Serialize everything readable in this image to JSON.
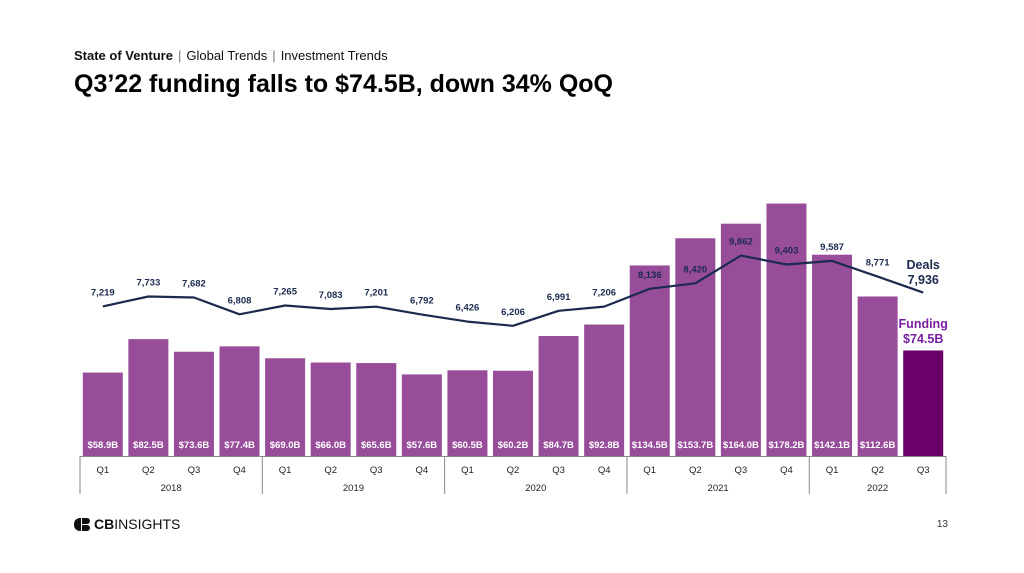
{
  "breadcrumb": {
    "section": "State of Venture",
    "item2": "Global Trends",
    "item3": "Investment Trends",
    "separator": "|"
  },
  "title": "Q3’22 funding falls to $74.5B, down 34% QoQ",
  "logo": {
    "bold": "CB",
    "rest": "INSIGHTS",
    "icon": "cb-insights-logo-icon"
  },
  "page_number": "13",
  "colors": {
    "bar": "#984d9b",
    "bar_highlight": "#6b0068",
    "line": "#1b2a4e",
    "funding_label": "#7b1fa2"
  },
  "chart_data": {
    "type": "bar",
    "title": "",
    "xlabel": "",
    "ylabel": "",
    "categories": [
      "Q1",
      "Q2",
      "Q3",
      "Q4",
      "Q1",
      "Q2",
      "Q3",
      "Q4",
      "Q1",
      "Q2",
      "Q3",
      "Q4",
      "Q1",
      "Q2",
      "Q3",
      "Q4",
      "Q1",
      "Q2",
      "Q3"
    ],
    "years": [
      {
        "label": "2018",
        "count": 4
      },
      {
        "label": "2019",
        "count": 4
      },
      {
        "label": "2020",
        "count": 4
      },
      {
        "label": "2021",
        "count": 4
      },
      {
        "label": "2022",
        "count": 3
      }
    ],
    "series": [
      {
        "name": "Funding",
        "type": "bar",
        "values": [
          58.9,
          82.5,
          73.6,
          77.4,
          69.0,
          66.0,
          65.6,
          57.6,
          60.5,
          60.2,
          84.7,
          92.8,
          134.5,
          153.7,
          164.0,
          178.2,
          142.1,
          112.6,
          74.5
        ],
        "labels": [
          "$58.9B",
          "$82.5B",
          "$73.6B",
          "$77.4B",
          "$69.0B",
          "$66.0B",
          "$65.6B",
          "$57.6B",
          "$60.5B",
          "$60.2B",
          "$84.7B",
          "$92.8B",
          "$134.5B",
          "$153.7B",
          "$164.0B",
          "$178.2B",
          "$142.1B",
          "$112.6B",
          ""
        ],
        "callout": "$74.5B"
      },
      {
        "name": "Deals",
        "type": "line",
        "values": [
          7219,
          7733,
          7682,
          6808,
          7265,
          7083,
          7201,
          6792,
          6426,
          6206,
          6991,
          7206,
          8136,
          8420,
          9862,
          9403,
          9587,
          8771,
          7936
        ],
        "labels": [
          "7,219",
          "7,733",
          "7,682",
          "6,808",
          "7,265",
          "7,083",
          "7,201",
          "6,792",
          "6,426",
          "6,206",
          "6,991",
          "7,206",
          "8,136",
          "8,420",
          "9,862",
          "9,403",
          "9,587",
          "8,771",
          ""
        ],
        "callout": "7,936"
      }
    ],
    "bar_ylim": [
      0,
      200
    ],
    "line_ylim": [
      4000,
      12000
    ],
    "grid": false,
    "legend": "inline-right"
  }
}
